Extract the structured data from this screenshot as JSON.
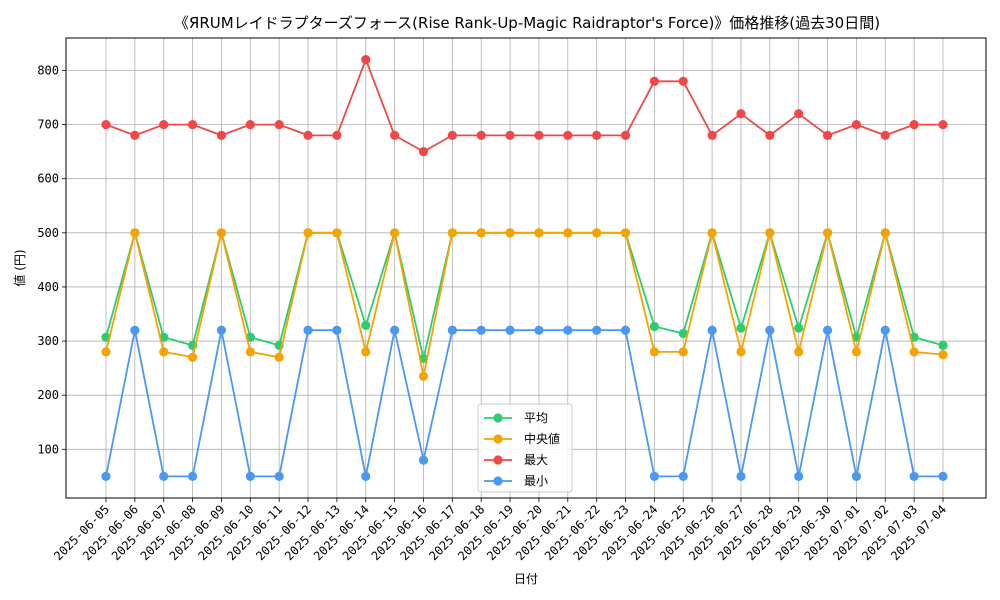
{
  "chart_data": {
    "type": "line",
    "title": "《ЯRUMレイドラプターズフォース(Rise Rank-Up-Magic Raidraptor's Force)》価格推移(過去30日間)",
    "xlabel": "日付",
    "ylabel": "値 (円)",
    "ylim": [
      10,
      860
    ],
    "yticks": [
      100,
      200,
      300,
      400,
      500,
      600,
      700,
      800
    ],
    "grid": true,
    "legend_position": "bottom-center",
    "categories": [
      "2025-06-05",
      "2025-06-06",
      "2025-06-07",
      "2025-06-08",
      "2025-06-09",
      "2025-06-10",
      "2025-06-11",
      "2025-06-12",
      "2025-06-13",
      "2025-06-14",
      "2025-06-15",
      "2025-06-16",
      "2025-06-17",
      "2025-06-18",
      "2025-06-19",
      "2025-06-20",
      "2025-06-21",
      "2025-06-22",
      "2025-06-23",
      "2025-06-24",
      "2025-06-25",
      "2025-06-26",
      "2025-06-27",
      "2025-06-28",
      "2025-06-29",
      "2025-06-30",
      "2025-07-01",
      "2025-07-02",
      "2025-07-03",
      "2025-07-04"
    ],
    "series": [
      {
        "name": "平均",
        "color": "#2ecc71",
        "values": [
          307,
          500,
          307,
          292,
          500,
          307,
          292,
          500,
          500,
          329,
          500,
          268,
          500,
          500,
          500,
          500,
          500,
          500,
          500,
          327,
          314,
          500,
          324,
          500,
          324,
          500,
          307,
          500,
          307,
          292
        ]
      },
      {
        "name": "中央値",
        "color": "#f5a300",
        "values": [
          280,
          500,
          280,
          270,
          500,
          280,
          270,
          500,
          500,
          280,
          500,
          235,
          500,
          500,
          500,
          500,
          500,
          500,
          500,
          280,
          280,
          500,
          280,
          500,
          280,
          500,
          280,
          500,
          280,
          275
        ]
      },
      {
        "name": "最大",
        "color": "#f04848",
        "values": [
          700,
          680,
          700,
          700,
          680,
          700,
          700,
          680,
          680,
          820,
          680,
          650,
          680,
          680,
          680,
          680,
          680,
          680,
          680,
          780,
          780,
          680,
          720,
          680,
          720,
          680,
          700,
          680,
          700,
          700
        ]
      },
      {
        "name": "最小",
        "color": "#4a98f0",
        "values": [
          50,
          320,
          50,
          50,
          320,
          50,
          50,
          320,
          320,
          50,
          320,
          80,
          320,
          320,
          320,
          320,
          320,
          320,
          320,
          50,
          50,
          320,
          50,
          320,
          50,
          320,
          50,
          320,
          50,
          50
        ]
      }
    ]
  }
}
